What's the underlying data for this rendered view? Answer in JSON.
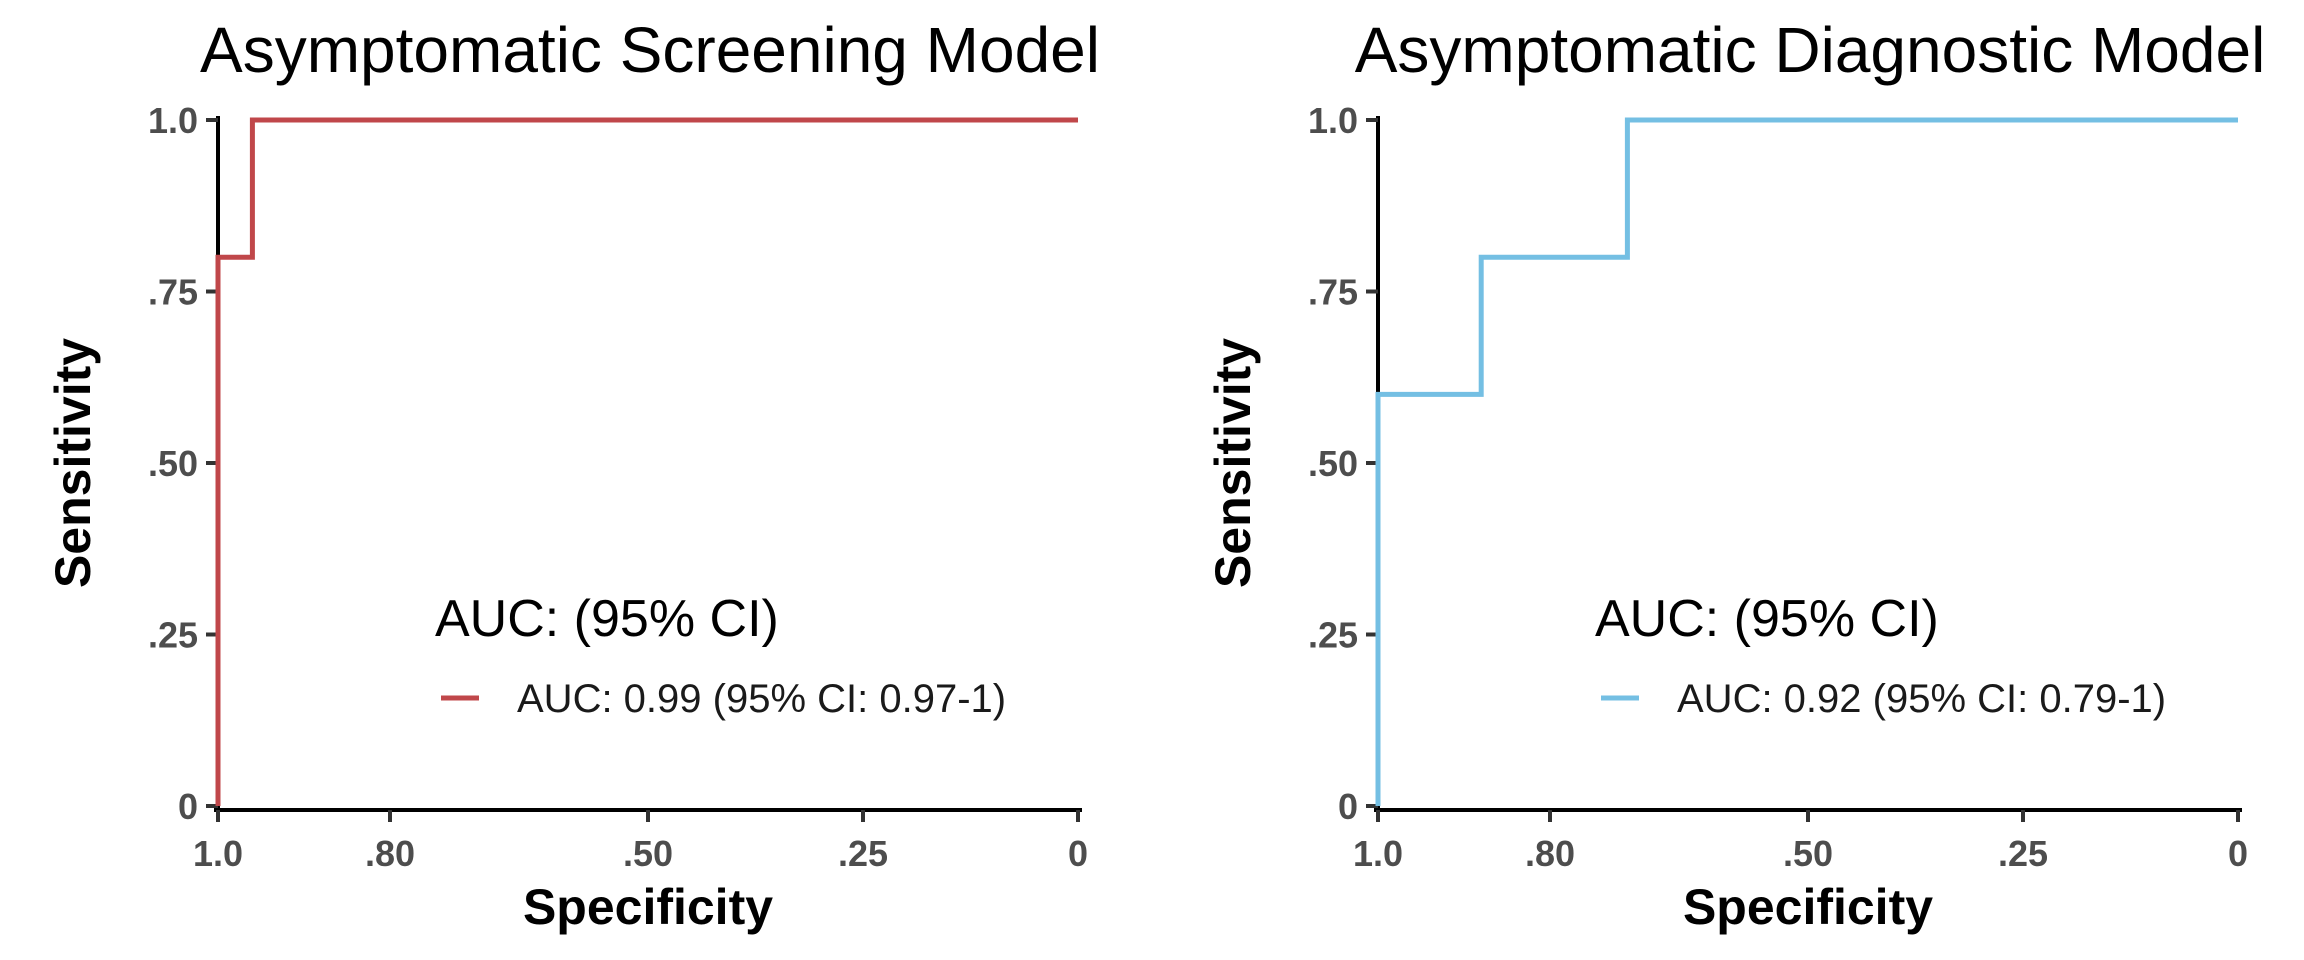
{
  "chart_data": [
    {
      "type": "line",
      "title": "Asymptomatic Screening Model",
      "xlabel": "Specificity",
      "ylabel": "Sensitivity",
      "xlim": [
        1.0,
        0.0
      ],
      "ylim": [
        0.0,
        1.0
      ],
      "x_reversed": true,
      "x_ticks": [
        1.0,
        0.8,
        0.5,
        0.25,
        0.0
      ],
      "x_tick_labels": [
        "1.0",
        ".80",
        ".50",
        ".25",
        "0"
      ],
      "y_ticks": [
        0.0,
        0.25,
        0.5,
        0.75,
        1.0
      ],
      "y_tick_labels": [
        "0",
        ".25",
        ".50",
        ".75",
        "1.0"
      ],
      "grid": false,
      "legend": {
        "title": "AUC: (95% CI)",
        "placement": "bottom-right",
        "entries": [
          "AUC: 0.99 (95% CI: 0.97-1)"
        ]
      },
      "series": [
        {
          "name": "AUC: 0.99 (95% CI: 0.97-1)",
          "color": "#c0474a",
          "step": true,
          "x": [
            1.0,
            1.0,
            0.96,
            0.96,
            0.0
          ],
          "y": [
            0.0,
            0.8,
            0.8,
            1.0,
            1.0
          ]
        }
      ]
    },
    {
      "type": "line",
      "title": "Asymptomatic Diagnostic Model",
      "xlabel": "Specificity",
      "ylabel": "Sensitivity",
      "xlim": [
        1.0,
        0.0
      ],
      "ylim": [
        0.0,
        1.0
      ],
      "x_reversed": true,
      "x_ticks": [
        1.0,
        0.8,
        0.5,
        0.25,
        0.0
      ],
      "x_tick_labels": [
        "1.0",
        ".80",
        ".50",
        ".25",
        "0"
      ],
      "y_ticks": [
        0.0,
        0.25,
        0.5,
        0.75,
        1.0
      ],
      "y_tick_labels": [
        "0",
        ".25",
        ".50",
        ".75",
        "1.0"
      ],
      "grid": false,
      "legend": {
        "title": "AUC: (95% CI)",
        "placement": "bottom-right",
        "entries": [
          "AUC: 0.92 (95% CI: 0.79-1)"
        ]
      },
      "series": [
        {
          "name": "AUC: 0.92 (95% CI: 0.79-1)",
          "color": "#74bfe3",
          "step": true,
          "x": [
            1.0,
            1.0,
            0.88,
            0.88,
            0.71,
            0.71,
            0.0
          ],
          "y": [
            0.0,
            0.6,
            0.6,
            0.8,
            0.8,
            1.0,
            1.0
          ]
        }
      ]
    }
  ]
}
